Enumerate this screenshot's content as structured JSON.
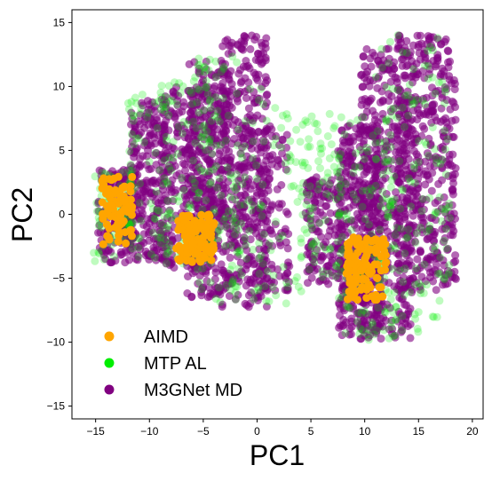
{
  "chart_data": {
    "type": "scatter",
    "title": "",
    "xlabel": "PC1",
    "ylabel": "PC2",
    "xlim": [
      -17.2,
      21.0
    ],
    "ylim": [
      -16.0,
      16.0
    ],
    "xticks": [
      -15,
      -10,
      -5,
      0,
      5,
      10,
      15,
      20
    ],
    "yticks": [
      -15,
      -10,
      -5,
      0,
      5,
      10,
      15
    ],
    "xtick_labels": [
      "−15",
      "−10",
      "−5",
      "0",
      "5",
      "10",
      "15",
      "20"
    ],
    "ytick_labels": [
      "−15",
      "−10",
      "−5",
      "0",
      "5",
      "10",
      "15"
    ],
    "grid": false,
    "legend_position": "bottom-left",
    "series": [
      {
        "name": "M3GNet MD",
        "color": "#800080",
        "opacity": 0.6,
        "marker": "circle",
        "regions": [
          {
            "x": [
              -14.8,
              -11.0
            ],
            "y": [
              -3.8,
              3.5
            ],
            "density": 160
          },
          {
            "x": [
              -11.8,
              -8.5
            ],
            "y": [
              -3.6,
              9.0
            ],
            "density": 240
          },
          {
            "x": [
              -8.8,
              -4.0
            ],
            "y": [
              -4.2,
              10.0
            ],
            "density": 280
          },
          {
            "x": [
              -6.5,
              -2.5
            ],
            "y": [
              -6.5,
              12.0
            ],
            "density": 320
          },
          {
            "x": [
              -3.5,
              1.0
            ],
            "y": [
              -7.3,
              14.0
            ],
            "density": 320
          },
          {
            "x": [
              -2.0,
              3.0
            ],
            "y": [
              -6.0,
              7.0
            ],
            "density": 180
          },
          {
            "x": [
              4.5,
              8.0
            ],
            "y": [
              -5.5,
              3.0
            ],
            "density": 140
          },
          {
            "x": [
              7.5,
              11.5
            ],
            "y": [
              -9.5,
              7.0
            ],
            "density": 380
          },
          {
            "x": [
              9.5,
              14.5
            ],
            "y": [
              -9.8,
              13.0
            ],
            "density": 420
          },
          {
            "x": [
              13.0,
              18.5
            ],
            "y": [
              -6.0,
              14.0
            ],
            "density": 420
          }
        ]
      },
      {
        "name": "MTP AL",
        "color": "#00ee00",
        "opacity": 0.25,
        "marker": "circle",
        "regions": [
          {
            "x": [
              -15.5,
              -11.5
            ],
            "y": [
              -3.7,
              3.5
            ],
            "density": 70
          },
          {
            "x": [
              -12.0,
              -8.0
            ],
            "y": [
              -3.5,
              9.5
            ],
            "density": 80
          },
          {
            "x": [
              -9.0,
              -4.0
            ],
            "y": [
              -4.0,
              10.5
            ],
            "density": 90
          },
          {
            "x": [
              -6.0,
              -1.5
            ],
            "y": [
              -7.0,
              12.5
            ],
            "density": 100
          },
          {
            "x": [
              -2.5,
              6.0
            ],
            "y": [
              -7.3,
              10.0
            ],
            "density": 120
          },
          {
            "x": [
              4.0,
              8.0
            ],
            "y": [
              -5.0,
              8.0
            ],
            "density": 70
          },
          {
            "x": [
              7.5,
              13.0
            ],
            "y": [
              -10.0,
              8.0
            ],
            "density": 140
          },
          {
            "x": [
              11.0,
              18.0
            ],
            "y": [
              -9.5,
              14.0
            ],
            "density": 160
          }
        ]
      },
      {
        "name": "AIMD",
        "color": "#ffa500",
        "opacity": 1.0,
        "marker": "circle",
        "regions": [
          {
            "x": [
              -14.4,
              -11.6
            ],
            "y": [
              -2.5,
              3.0
            ],
            "density": 90
          },
          {
            "x": [
              -7.5,
              -4.0
            ],
            "y": [
              -3.8,
              0.0
            ],
            "density": 110
          },
          {
            "x": [
              8.3,
              12.0
            ],
            "y": [
              -6.7,
              -1.8
            ],
            "density": 110
          }
        ]
      }
    ]
  }
}
